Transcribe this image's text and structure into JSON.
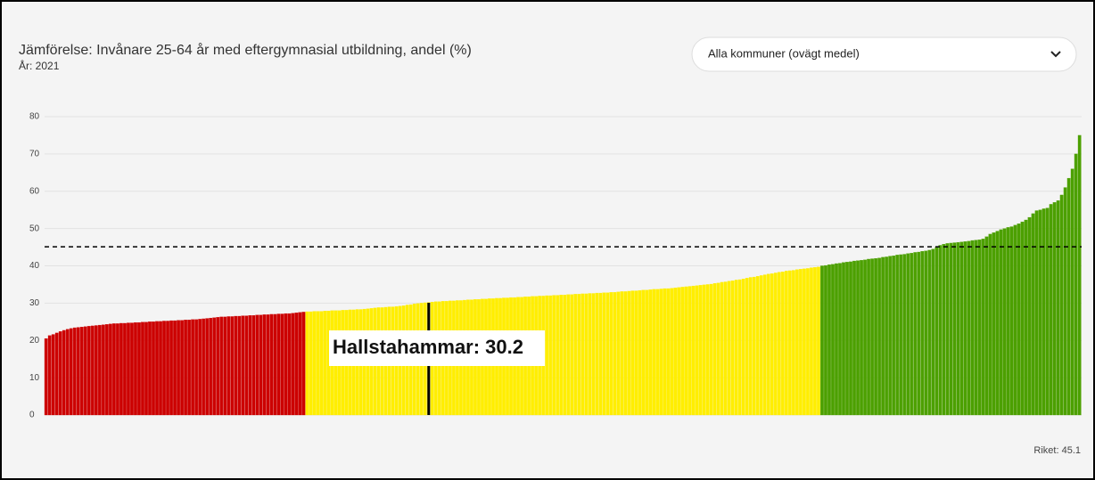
{
  "chart_data": {
    "type": "bar",
    "title": "Jämförelse: Invånare 25-64 år med eftergymnasial utbildning, andel (%)",
    "subtitle": "År: 2021",
    "dropdown": "Alla kommuner (ovägt medel)",
    "ylim": [
      0,
      80
    ],
    "yticks": [
      0,
      10,
      20,
      30,
      40,
      50,
      60,
      70,
      80
    ],
    "grid": true,
    "reference": {
      "label": "Riket: 45.1",
      "value": 45.1
    },
    "annotation": {
      "text": "Hallstahammar: 30.2",
      "value": 30.2
    },
    "series": [
      {
        "color": "#cc0000",
        "values": [
          20.5,
          21.3,
          21.6,
          22.0,
          22.4,
          22.7,
          23.0,
          23.2,
          23.4,
          23.5,
          23.6,
          23.7,
          23.8,
          23.9,
          24.0,
          24.1,
          24.2,
          24.3,
          24.4,
          24.5,
          24.5,
          24.6,
          24.6,
          24.7,
          24.7,
          24.8,
          24.8,
          24.9,
          24.9,
          25.0,
          25.0,
          25.1,
          25.1,
          25.2,
          25.2,
          25.3,
          25.3,
          25.4,
          25.4,
          25.5,
          25.5,
          25.6,
          25.6,
          25.7,
          25.8,
          25.9,
          26.0,
          26.1,
          26.2,
          26.3,
          26.3,
          26.4,
          26.4,
          26.5,
          26.5,
          26.6,
          26.6,
          26.7,
          26.7,
          26.8,
          26.8,
          26.9,
          26.9,
          27.0,
          27.0,
          27.1,
          27.1,
          27.2,
          27.2,
          27.3,
          27.4,
          27.5,
          27.6
        ]
      },
      {
        "color": "#ffee00",
        "values": [
          27.7,
          27.7,
          27.8,
          27.8,
          27.8,
          27.9,
          27.9,
          28.0,
          28.0,
          28.0,
          28.1,
          28.1,
          28.2,
          28.2,
          28.3,
          28.3,
          28.4,
          28.5,
          28.6,
          28.7,
          28.8,
          28.8,
          28.9,
          29.0,
          29.0,
          29.1,
          29.2,
          29.3,
          29.5,
          29.6,
          29.8,
          29.9,
          30.0,
          30.1,
          30.2,
          30.3,
          30.4,
          30.4,
          30.5,
          30.5,
          30.6,
          30.6,
          30.7,
          30.7,
          30.8,
          30.9,
          30.9,
          31.0,
          31.0,
          31.1,
          31.1,
          31.2,
          31.2,
          31.3,
          31.3,
          31.4,
          31.4,
          31.5,
          31.5,
          31.6,
          31.6,
          31.7,
          31.7,
          31.8,
          31.8,
          31.9,
          31.9,
          32.0,
          32.0,
          32.1,
          32.1,
          32.2,
          32.2,
          32.3,
          32.3,
          32.4,
          32.4,
          32.5,
          32.5,
          32.6,
          32.6,
          32.7,
          32.7,
          32.8,
          32.8,
          32.9,
          32.9,
          33.0,
          33.1,
          33.1,
          33.2,
          33.3,
          33.3,
          33.4,
          33.5,
          33.5,
          33.6,
          33.7,
          33.7,
          33.8,
          33.9,
          33.9,
          34.0,
          34.1,
          34.2,
          34.3,
          34.4,
          34.5,
          34.6,
          34.7,
          34.8,
          34.9,
          35.0,
          35.1,
          35.3,
          35.4,
          35.6,
          35.7,
          35.9,
          36.0,
          36.2,
          36.3,
          36.5,
          36.7,
          36.9,
          37.0,
          37.2,
          37.4,
          37.6,
          37.8,
          37.9,
          38.1,
          38.3,
          38.4,
          38.6,
          38.7,
          38.8,
          39.0,
          39.1,
          39.2,
          39.3,
          39.5,
          39.6,
          39.7
        ]
      },
      {
        "color": "#4ca000",
        "values": [
          40.0,
          40.1,
          40.3,
          40.4,
          40.6,
          40.7,
          40.9,
          41.0,
          41.1,
          41.3,
          41.4,
          41.5,
          41.6,
          41.8,
          41.9,
          42.0,
          42.1,
          42.3,
          42.4,
          42.6,
          42.7,
          42.9,
          43.0,
          43.1,
          43.3,
          43.4,
          43.6,
          43.7,
          43.9,
          44.0,
          44.2,
          44.5,
          45.0,
          45.5,
          45.8,
          46.0,
          46.1,
          46.2,
          46.3,
          46.4,
          46.5,
          46.6,
          46.8,
          46.9,
          47.0,
          47.2,
          47.8,
          48.5,
          48.9,
          49.3,
          49.7,
          50.0,
          50.3,
          50.5,
          50.9,
          51.3,
          51.8,
          52.3,
          53.0,
          54.0,
          54.8,
          55.0,
          55.3,
          55.5,
          56.5,
          57.0,
          57.5,
          59.0,
          61.0,
          63.5,
          66.0,
          70.0,
          75.0
        ]
      }
    ]
  }
}
